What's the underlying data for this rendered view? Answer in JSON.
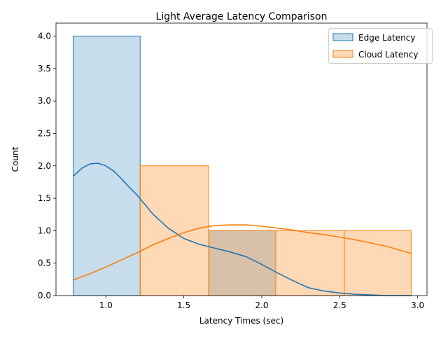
{
  "chart_data": {
    "type": "histogram",
    "title": "Light Average Latency Comparison",
    "xlabel": "Latency Times (sec)",
    "ylabel": "Count",
    "xlim": [
      0.68,
      3.06
    ],
    "ylim": [
      0,
      4.2
    ],
    "xticks": [
      {
        "value": 1.0,
        "label": "1.0"
      },
      {
        "value": 1.5,
        "label": "1.5"
      },
      {
        "value": 2.0,
        "label": "2.0"
      },
      {
        "value": 2.5,
        "label": "2.5"
      },
      {
        "value": 3.0,
        "label": "3.0"
      }
    ],
    "yticks": [
      {
        "value": 0.0,
        "label": "0.0"
      },
      {
        "value": 0.5,
        "label": "0.5"
      },
      {
        "value": 1.0,
        "label": "1.0"
      },
      {
        "value": 1.5,
        "label": "1.5"
      },
      {
        "value": 2.0,
        "label": "2.0"
      },
      {
        "value": 2.5,
        "label": "2.5"
      },
      {
        "value": 3.0,
        "label": "3.0"
      },
      {
        "value": 3.5,
        "label": "3.5"
      },
      {
        "value": 4.0,
        "label": "4.0"
      }
    ],
    "grid": false,
    "legend_position": "top-right",
    "series": [
      {
        "name": "Edge Latency",
        "color": "#1f77b4",
        "fill_opacity": 0.25,
        "bins": [
          {
            "x0": 0.79,
            "x1": 1.22,
            "count": 4
          },
          {
            "x0": 1.22,
            "x1": 1.66,
            "count": 0
          },
          {
            "x0": 1.66,
            "x1": 2.09,
            "count": 1
          }
        ],
        "kde": {
          "x": [
            0.79,
            0.85,
            0.9,
            0.95,
            1.0,
            1.05,
            1.1,
            1.15,
            1.2,
            1.3,
            1.4,
            1.5,
            1.6,
            1.7,
            1.8,
            1.9,
            2.0,
            2.1,
            2.2,
            2.3,
            2.4,
            2.5,
            2.6,
            2.7,
            2.8,
            2.96
          ],
          "y": [
            1.84,
            1.97,
            2.03,
            2.04,
            2.0,
            1.92,
            1.8,
            1.67,
            1.55,
            1.26,
            1.04,
            0.88,
            0.79,
            0.73,
            0.67,
            0.6,
            0.48,
            0.35,
            0.23,
            0.12,
            0.07,
            0.04,
            0.02,
            0.01,
            0.0,
            0.0
          ]
        }
      },
      {
        "name": "Cloud Latency",
        "color": "#ff7f0e",
        "fill_opacity": 0.3,
        "bins": [
          {
            "x0": 1.22,
            "x1": 1.66,
            "count": 2
          },
          {
            "x0": 1.66,
            "x1": 2.09,
            "count": 1
          },
          {
            "x0": 2.09,
            "x1": 2.53,
            "count": 1
          },
          {
            "x0": 2.53,
            "x1": 2.96,
            "count": 1
          }
        ],
        "kde": {
          "x": [
            0.79,
            0.9,
            1.0,
            1.1,
            1.2,
            1.3,
            1.4,
            1.5,
            1.6,
            1.7,
            1.8,
            1.9,
            2.0,
            2.1,
            2.2,
            2.3,
            2.4,
            2.5,
            2.6,
            2.7,
            2.8,
            2.9,
            2.96
          ],
          "y": [
            0.24,
            0.34,
            0.44,
            0.55,
            0.66,
            0.78,
            0.88,
            0.97,
            1.04,
            1.08,
            1.09,
            1.09,
            1.07,
            1.04,
            1.01,
            0.97,
            0.94,
            0.9,
            0.86,
            0.81,
            0.76,
            0.69,
            0.65
          ]
        }
      }
    ]
  }
}
